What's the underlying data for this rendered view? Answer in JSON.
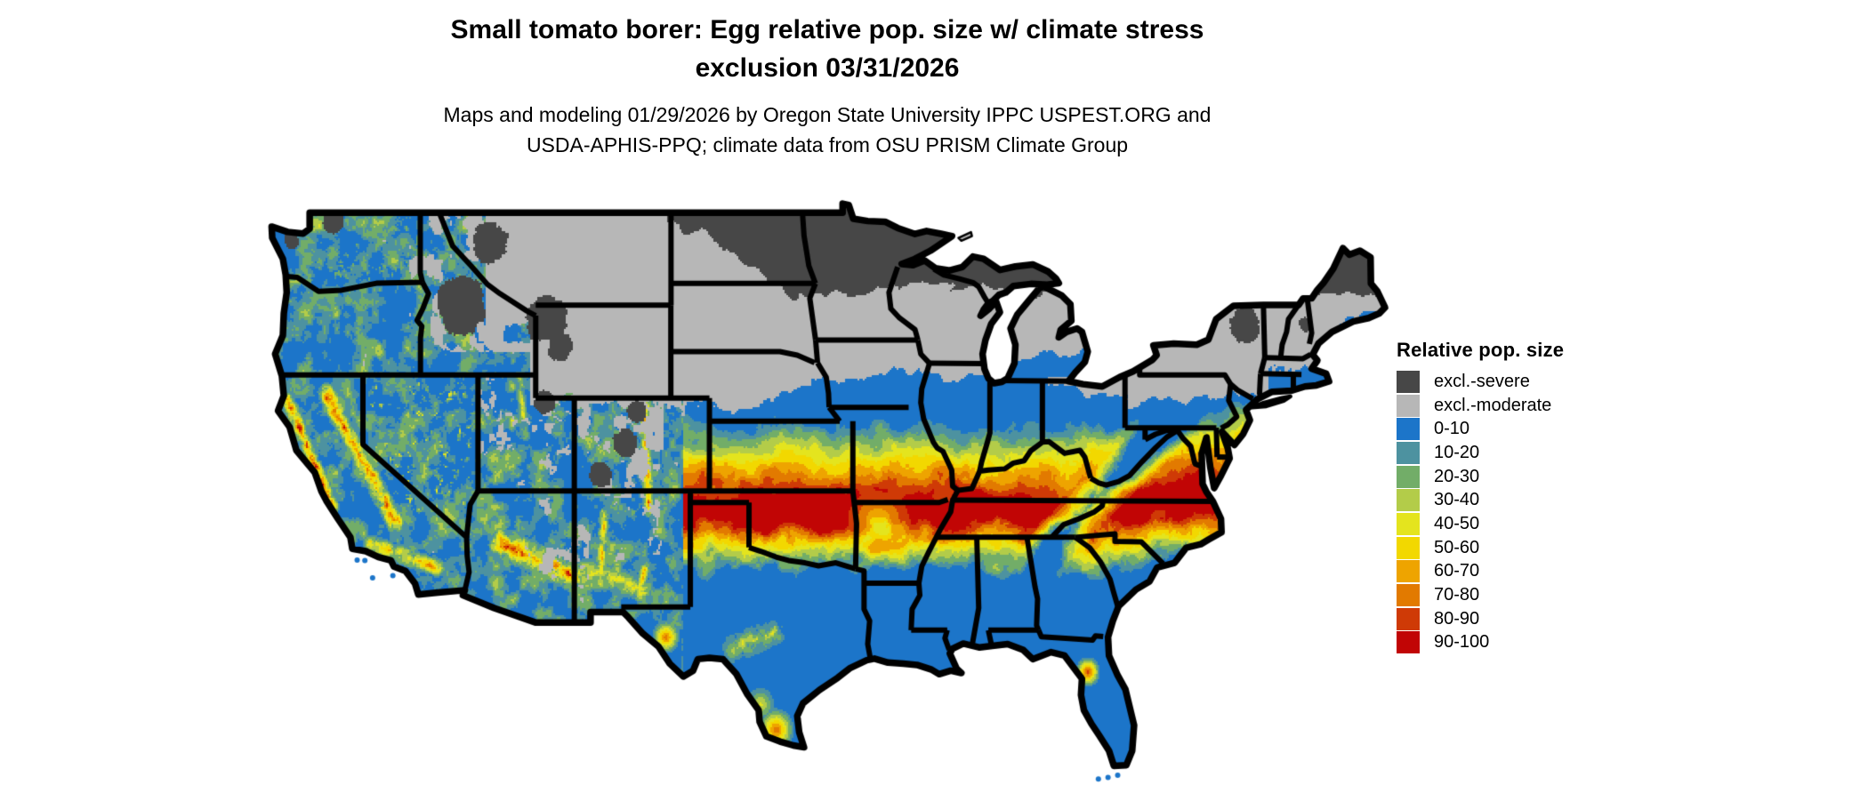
{
  "title": {
    "line1": "Small tomato borer: Egg relative pop. size w/ climate stress",
    "line2": "exclusion 03/31/2026"
  },
  "subtitle": {
    "line1": "Maps and modeling 01/29/2026 by Oregon State University IPPC USPEST.ORG and",
    "line2": "USDA-APHIS-PPQ; climate data from OSU PRISM Climate Group"
  },
  "legend": {
    "title": "Relative pop. size",
    "entries": [
      {
        "label": "excl.-severe",
        "color": "#474747"
      },
      {
        "label": "excl.-moderate",
        "color": "#b7b7b7"
      },
      {
        "label": "0-10",
        "color": "#1c75c9"
      },
      {
        "label": "10-20",
        "color": "#4d92a0"
      },
      {
        "label": "20-30",
        "color": "#72ad68"
      },
      {
        "label": "30-40",
        "color": "#b3cc49"
      },
      {
        "label": "40-50",
        "color": "#e4e41e"
      },
      {
        "label": "50-60",
        "color": "#f2d800"
      },
      {
        "label": "60-70",
        "color": "#eea400"
      },
      {
        "label": "70-80",
        "color": "#e27a00"
      },
      {
        "label": "80-90",
        "color": "#cf3a06"
      },
      {
        "label": "90-100",
        "color": "#c10505"
      }
    ]
  },
  "map": {
    "kind": "raster choropleth map",
    "region": "contiguous United States with state boundaries",
    "background": "#ffffff",
    "border_color": "#000000",
    "pattern": {
      "north": "excl.-severe dark gray over northern MN/WI/ND, Michigan UP and northern Maine; excl.-moderate gray across the northern plains (MT, WY, Dakotas, NE, IA), upper Midwest, upstate NY and northern New England",
      "center": "east-west band peaking at 90-100 near 36N from the Texas/Oklahoma panhandles through Arkansas, Tennessee and Kentucky to Virginia/North Carolina piedmont",
      "south": "0-10 blue across Texas, the Gulf states and Florida, with warm 70-100 hotspots in the lower Rio Grande valley of south Texas and north-central Florida",
      "west": "mostly 0-10 blue basins with gray exclusion over the Rockies and high plateaus; 60-100 orange/red ridges along the California coast ranges, Sierra Nevada, Mogollon Rim and southern Rockies"
    }
  }
}
